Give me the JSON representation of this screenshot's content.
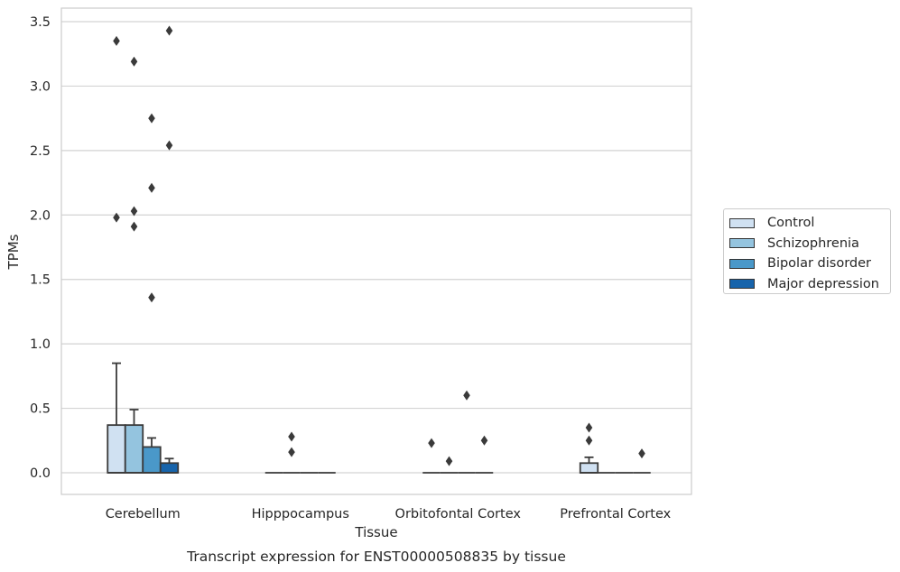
{
  "chart_data": {
    "type": "box",
    "title": "Transcript expression for ENST00000508835 by tissue",
    "xlabel": "Tissue",
    "ylabel": "TPMs",
    "ylim": [
      -0.17,
      3.6
    ],
    "yticks": [
      "0.0",
      "0.5",
      "1.0",
      "1.5",
      "2.0",
      "2.5",
      "3.0",
      "3.5"
    ],
    "ytick_values": [
      0,
      0.5,
      1.0,
      1.5,
      2.0,
      2.5,
      3.0,
      3.5
    ],
    "grid": "horizontal",
    "legend_position": "right",
    "categories": [
      "Cerebellum",
      "Hipppocampus",
      "Orbitofontal Cortex",
      "Prefrontal Cortex"
    ],
    "series": [
      {
        "name": "Control",
        "color": "#d0e1f2",
        "boxes": [
          {
            "category": "Cerebellum",
            "min": 0,
            "q1": 0,
            "median": 0,
            "q3": 0.37,
            "max": 0.85,
            "outliers": [
              3.35,
              1.98
            ]
          },
          {
            "category": "Hipppocampus",
            "min": 0,
            "q1": 0,
            "median": 0,
            "q3": 0,
            "max": 0,
            "outliers": []
          },
          {
            "category": "Orbitofontal Cortex",
            "min": 0,
            "q1": 0,
            "median": 0,
            "q3": 0,
            "max": 0,
            "outliers": [
              0.23
            ]
          },
          {
            "category": "Prefrontal Cortex",
            "min": 0,
            "q1": 0,
            "median": 0,
            "q3": 0.075,
            "max": 0.12,
            "outliers": [
              0.35,
              0.25
            ]
          }
        ]
      },
      {
        "name": "Schizophrenia",
        "color": "#94c4df",
        "boxes": [
          {
            "category": "Cerebellum",
            "min": 0,
            "q1": 0,
            "median": 0,
            "q3": 0.37,
            "max": 0.49,
            "outliers": [
              3.19,
              2.03,
              1.91
            ]
          },
          {
            "category": "Hipppocampus",
            "min": 0,
            "q1": 0,
            "median": 0,
            "q3": 0,
            "max": 0,
            "outliers": [
              0.28,
              0.16
            ]
          },
          {
            "category": "Orbitofontal Cortex",
            "min": 0,
            "q1": 0,
            "median": 0,
            "q3": 0,
            "max": 0,
            "outliers": [
              0.09
            ]
          },
          {
            "category": "Prefrontal Cortex",
            "min": 0,
            "q1": 0,
            "median": 0,
            "q3": 0,
            "max": 0,
            "outliers": []
          }
        ]
      },
      {
        "name": "Bipolar disorder",
        "color": "#4a98c9",
        "boxes": [
          {
            "category": "Cerebellum",
            "min": 0,
            "q1": 0,
            "median": 0,
            "q3": 0.2,
            "max": 0.27,
            "outliers": [
              2.75,
              2.21,
              1.36
            ]
          },
          {
            "category": "Hipppocampus",
            "min": 0,
            "q1": 0,
            "median": 0,
            "q3": 0,
            "max": 0,
            "outliers": []
          },
          {
            "category": "Orbitofontal Cortex",
            "min": 0,
            "q1": 0,
            "median": 0,
            "q3": 0,
            "max": 0,
            "outliers": [
              0.6
            ]
          },
          {
            "category": "Prefrontal Cortex",
            "min": 0,
            "q1": 0,
            "median": 0,
            "q3": 0,
            "max": 0,
            "outliers": []
          }
        ]
      },
      {
        "name": "Major depression",
        "color": "#1764ab",
        "boxes": [
          {
            "category": "Cerebellum",
            "min": 0,
            "q1": 0,
            "median": 0,
            "q3": 0.075,
            "max": 0.11,
            "outliers": [
              3.43,
              2.54
            ]
          },
          {
            "category": "Hipppocampus",
            "min": 0,
            "q1": 0,
            "median": 0,
            "q3": 0,
            "max": 0,
            "outliers": []
          },
          {
            "category": "Orbitofontal Cortex",
            "min": 0,
            "q1": 0,
            "median": 0,
            "q3": 0,
            "max": 0,
            "outliers": [
              0.25
            ]
          },
          {
            "category": "Prefrontal Cortex",
            "min": 0,
            "q1": 0,
            "median": 0,
            "q3": 0,
            "max": 0,
            "outliers": [
              0.15
            ]
          }
        ]
      }
    ]
  }
}
